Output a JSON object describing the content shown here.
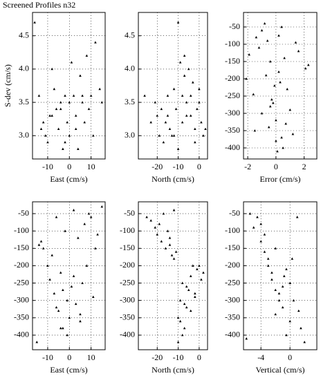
{
  "title": "Screened Profiles n32",
  "chart_data": [
    {
      "type": "scatter",
      "xlabel": "East (cm/s)",
      "ylabel": "S-dev (cm/s)",
      "color": "#000000",
      "grid": true,
      "xlim": [
        -17,
        16.5
      ],
      "xticks": [
        -10,
        0,
        10
      ],
      "ylim": [
        2.65,
        4.85
      ],
      "yticks": [
        {
          "value": 3,
          "label": "3.0"
        },
        3.5,
        {
          "value": 4,
          "label": "4.0"
        },
        4.5
      ],
      "x": [
        -16,
        -14,
        -12,
        -11,
        -10,
        -9,
        -8,
        -7,
        -6,
        -5,
        -4,
        -3,
        -2,
        -1,
        0,
        1,
        2,
        3,
        4,
        5,
        6,
        7,
        8,
        9,
        10,
        11,
        12,
        14,
        15,
        -13,
        -8,
        -4,
        -2,
        0,
        3,
        6
      ],
      "values": [
        4.7,
        3.6,
        3.2,
        3.0,
        2.9,
        3.3,
        4.0,
        3.7,
        3.4,
        3.1,
        3.5,
        2.8,
        3.6,
        3.2,
        3.0,
        4.1,
        3.6,
        3.3,
        2.8,
        3.9,
        3.5,
        3.2,
        4.2,
        3.4,
        3.6,
        3.0,
        4.4,
        3.7,
        3.5,
        3.1,
        3.3,
        3.4,
        2.9,
        3.5,
        3.1,
        3.6
      ]
    },
    {
      "type": "scatter",
      "xlabel": "North (cm/s)",
      "color": "#000000",
      "grid": true,
      "xlim": [
        -29,
        4
      ],
      "xticks": [
        -20,
        -10,
        0
      ],
      "ylim": [
        2.65,
        4.85
      ],
      "yticks": [
        {
          "value": 3,
          "label": "3.0"
        },
        3.5,
        {
          "value": 4,
          "label": "4.0"
        },
        4.5
      ],
      "x": [
        -26,
        -23,
        -21,
        -20,
        -19,
        -18,
        -17,
        -16,
        -15,
        -14,
        -13,
        -12,
        -11,
        -10,
        -9,
        -8,
        -7,
        -6,
        -5,
        -4,
        -3,
        -2,
        -1,
        0,
        1,
        2,
        3,
        -10,
        -8,
        -6,
        -4,
        -2,
        0,
        -12,
        -15,
        -7
      ],
      "values": [
        3.6,
        3.2,
        3.5,
        3.3,
        3.0,
        3.4,
        2.9,
        3.2,
        3.6,
        3.1,
        3.0,
        3.7,
        3.4,
        4.7,
        4.1,
        3.6,
        3.9,
        3.5,
        4.0,
        3.3,
        3.8,
        3.1,
        3.4,
        3.5,
        3.2,
        3.0,
        3.1,
        2.8,
        3.2,
        3.3,
        3.6,
        2.9,
        3.7,
        3.0,
        3.3,
        4.2
      ]
    },
    {
      "type": "scatter",
      "xlabel": "Error (cm/s)",
      "color": "#000000",
      "grid": true,
      "xlim": [
        -2.3,
        2.9
      ],
      "xticks": [
        -2,
        0,
        2
      ],
      "ylim": [
        -432,
        -8
      ],
      "yticks": [
        -50,
        -100,
        -150,
        -200,
        -250,
        -300,
        -350,
        -400
      ],
      "x": [
        -2.1,
        -1.9,
        -1.6,
        -1.4,
        -1.2,
        -1.0,
        -0.8,
        -0.6,
        -0.4,
        -0.2,
        0,
        0.2,
        0.4,
        0.6,
        0.8,
        1.0,
        1.2,
        1.6,
        2.1,
        2.3,
        -1.0,
        -0.5,
        0,
        0.5,
        0.3,
        -0.3,
        0.1,
        -0.7,
        0.7,
        -1.5,
        1.4,
        0.2,
        -0.1,
        0.4,
        -0.4
      ],
      "values": [
        -200,
        -130,
        -245,
        -80,
        -110,
        -60,
        -40,
        -90,
        -150,
        -270,
        -320,
        -180,
        -50,
        -140,
        -230,
        -290,
        -360,
        -120,
        -170,
        -160,
        -300,
        -340,
        -380,
        -400,
        -210,
        -260,
        -410,
        -190,
        -330,
        -350,
        -95,
        -75,
        -220,
        -370,
        -280
      ]
    },
    {
      "type": "scatter",
      "xlabel": "East (cm/s)",
      "color": "#000000",
      "grid": true,
      "xlim": [
        -17,
        16.5
      ],
      "xticks": [
        -10,
        0,
        10
      ],
      "ylim": [
        -442,
        -16
      ],
      "yticks": [
        -50,
        -100,
        -150,
        -200,
        -250,
        -300,
        -350,
        -400
      ],
      "x": [
        -15,
        -14,
        -13,
        -12,
        -10,
        -9,
        -8,
        -7,
        -6,
        -5,
        -4,
        -3,
        -2,
        -1,
        0,
        1,
        2,
        3,
        4,
        5,
        6,
        7,
        8,
        9,
        10,
        11,
        12,
        13,
        15,
        -6,
        -3,
        -1,
        2,
        5,
        -4
      ],
      "values": [
        -420,
        -140,
        -130,
        -150,
        -200,
        -240,
        -170,
        -280,
        -60,
        -330,
        -220,
        -380,
        -100,
        -300,
        -350,
        -260,
        -40,
        -310,
        -120,
        -360,
        -250,
        -80,
        -200,
        -50,
        -60,
        -290,
        -150,
        -110,
        -30,
        -320,
        -270,
        -400,
        -230,
        -340,
        -380
      ]
    },
    {
      "type": "scatter",
      "xlabel": "North (cm/s)",
      "color": "#000000",
      "grid": true,
      "xlim": [
        -29,
        4
      ],
      "xticks": [
        -20,
        -10,
        0
      ],
      "ylim": [
        -442,
        -16
      ],
      "yticks": [
        -50,
        -100,
        -150,
        -200,
        -250,
        -300,
        -350,
        -400
      ],
      "x": [
        -25,
        -23,
        -21,
        -20,
        -19,
        -18,
        -17,
        -16,
        -15,
        -14,
        -13,
        -12,
        -11,
        -10,
        -9,
        -8,
        -7,
        -6,
        -5,
        -4,
        -3,
        -2,
        -1,
        0,
        1,
        2,
        -10,
        -8,
        -6,
        -4,
        -2,
        -12,
        -14,
        -9,
        -7
      ],
      "values": [
        -60,
        -70,
        -90,
        -110,
        -80,
        -130,
        -50,
        -150,
        -100,
        -120,
        -170,
        -40,
        -160,
        -420,
        -300,
        -250,
        -380,
        -320,
        -270,
        -230,
        -200,
        -290,
        -210,
        -200,
        -240,
        -220,
        -350,
        -400,
        -260,
        -330,
        -280,
        -180,
        -140,
        -360,
        -310
      ]
    },
    {
      "type": "scatter",
      "xlabel": "Vertical (cm/s)",
      "color": "#000000",
      "grid": true,
      "xlim": [
        -6.4,
        3.7
      ],
      "xticks": [
        -4,
        0
      ],
      "ylim": [
        -442,
        -16
      ],
      "yticks": [
        -50,
        -100,
        -150,
        -200,
        -250,
        -300,
        -350,
        -400
      ],
      "x": [
        -6,
        -5.5,
        -5,
        -4.5,
        -4,
        -3.5,
        -3,
        -2.5,
        -2,
        -1.5,
        -1,
        -0.5,
        0,
        0.5,
        1,
        1.5,
        2,
        -3,
        -2,
        -1,
        0,
        -4,
        -2.5,
        -0.5,
        0.3,
        -1.5,
        -3.5,
        1.2,
        -2,
        -0.8
      ],
      "values": [
        -410,
        -50,
        -90,
        -60,
        -130,
        -110,
        -180,
        -240,
        -150,
        -280,
        -320,
        -210,
        -250,
        -300,
        -60,
        -380,
        -420,
        -200,
        -340,
        -260,
        -360,
        -80,
        -220,
        -400,
        -180,
        -300,
        -160,
        -330,
        -270,
        -230
      ]
    }
  ]
}
